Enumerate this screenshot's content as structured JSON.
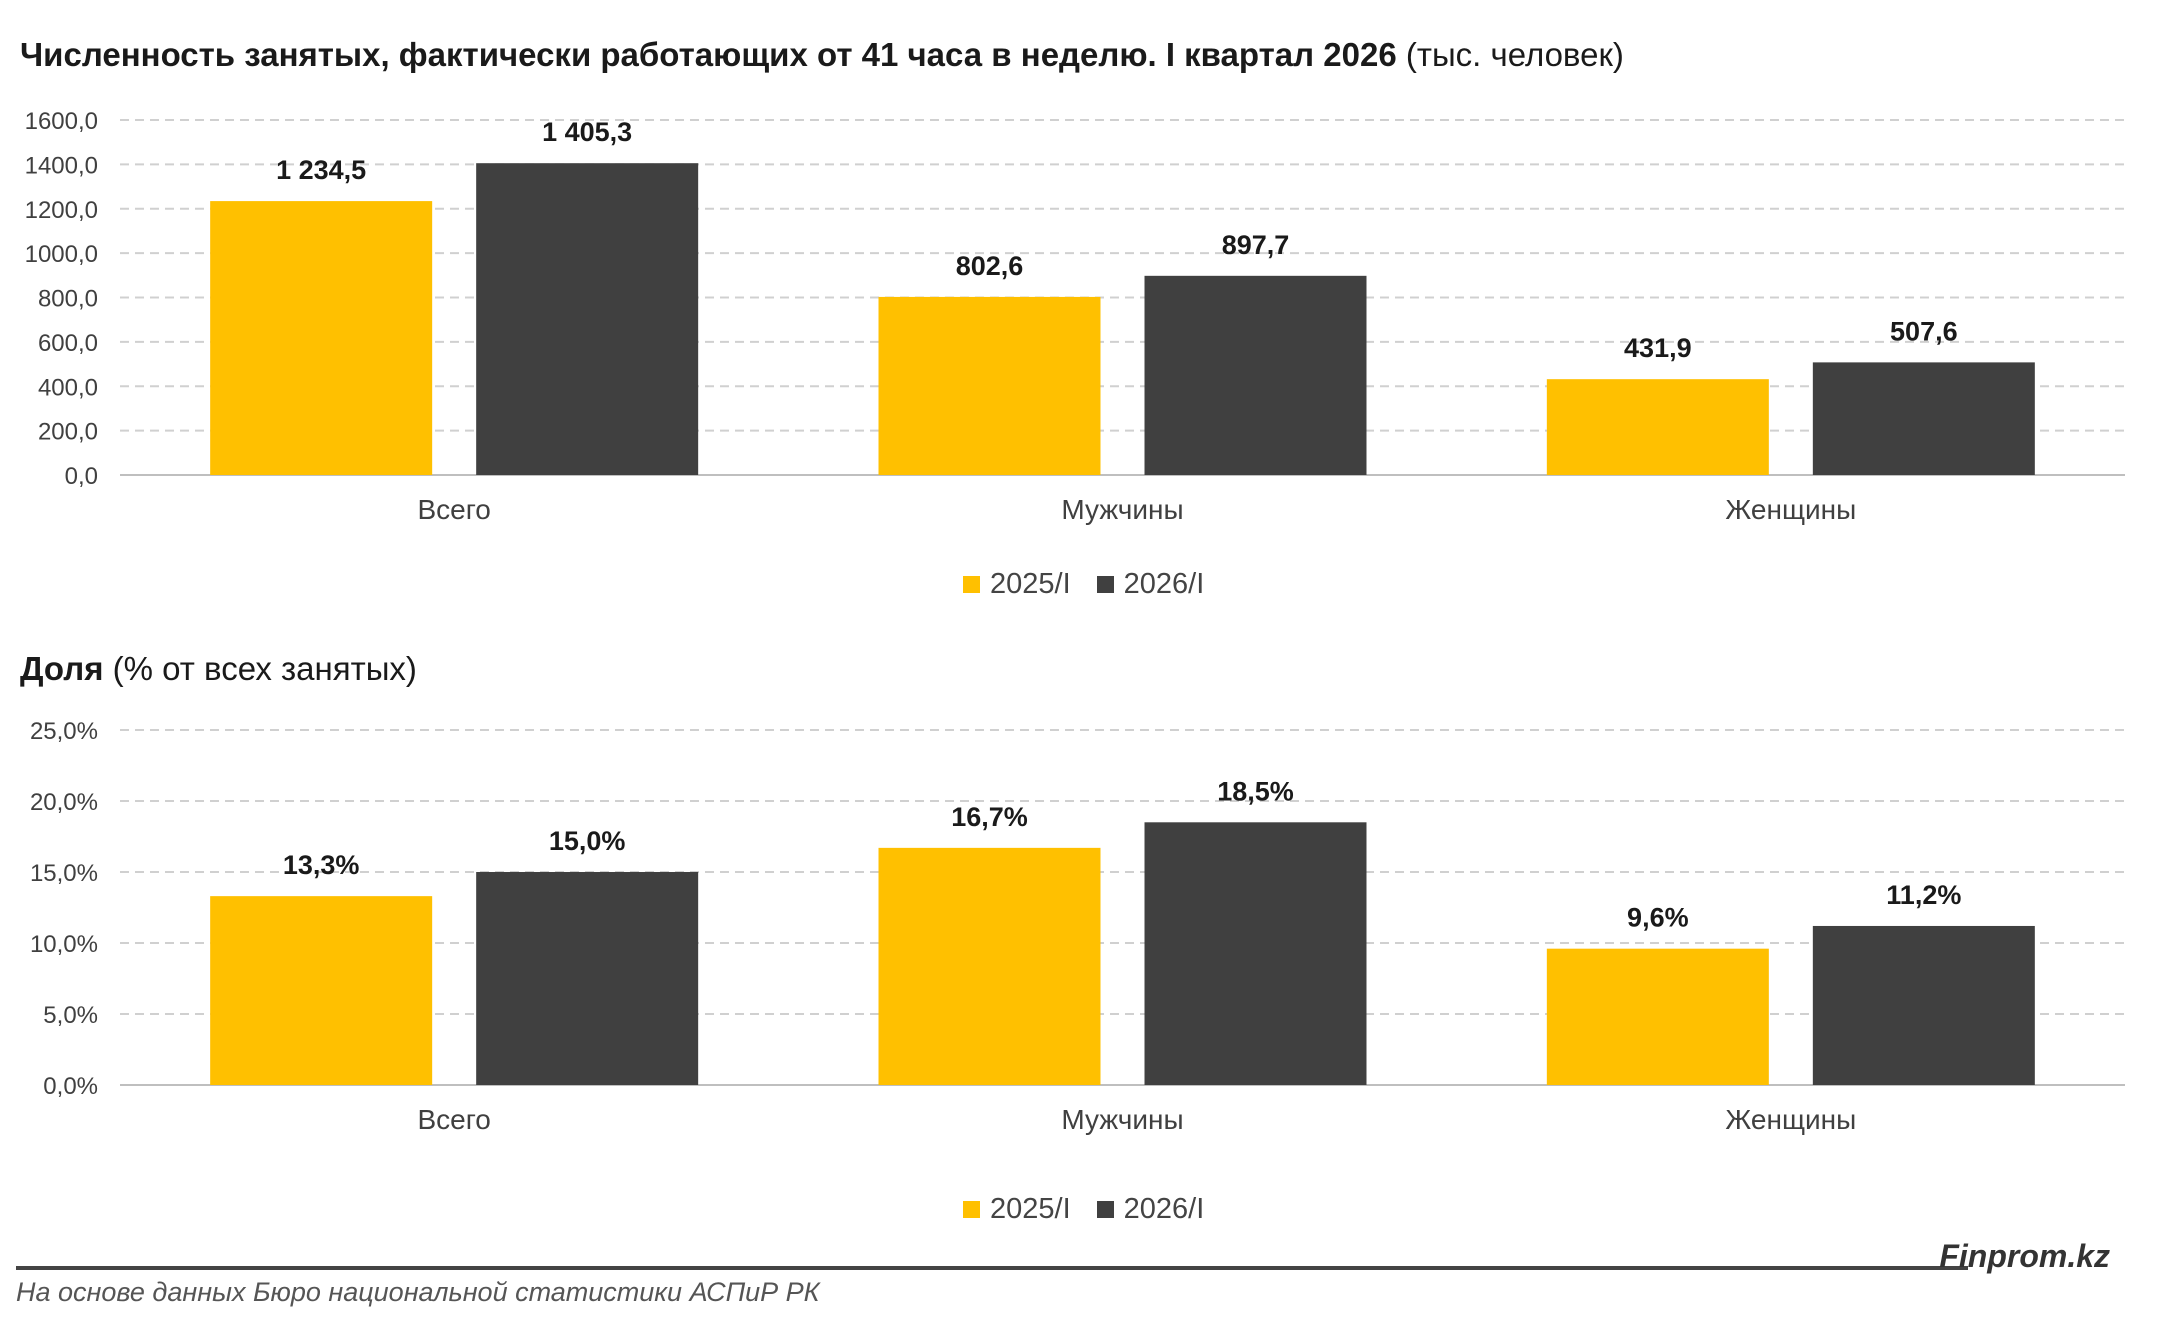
{
  "charts": [
    {
      "title_bold": "Численность занятых, фактически работающих от 41 часа в неделю. I квартал 2026",
      "title_rest": " (тыс. человек)"
    },
    {
      "title_bold": "Доля",
      "title_rest": " (% от всех занятых)"
    }
  ],
  "legend": [
    "2025/I",
    "2026/I"
  ],
  "colors": {
    "series_2025": "#FFC000",
    "series_2026": "#404040",
    "grid": "#d0d0d0",
    "axis": "#bfbfbf"
  },
  "footer": {
    "brand": "Finprom.kz",
    "source": "На основе данных Бюро национальной статистики АСПиР РК"
  },
  "chart_data": [
    {
      "type": "bar",
      "categories": [
        "Всего",
        "Мужчины",
        "Женщины"
      ],
      "series": [
        {
          "name": "2025/I",
          "values": [
            1234.5,
            802.6,
            431.9
          ],
          "labels": [
            "1 234,5",
            "802,6",
            "431,9"
          ]
        },
        {
          "name": "2026/I",
          "values": [
            1405.3,
            897.7,
            507.6
          ],
          "labels": [
            "1 405,3",
            "897,7",
            "507,6"
          ]
        }
      ],
      "ylim": [
        0,
        1600
      ],
      "yticks": [
        0,
        200,
        400,
        600,
        800,
        1000,
        1200,
        1400,
        1600
      ],
      "ytick_labels": [
        "0,0",
        "200,0",
        "400,0",
        "600,0",
        "800,0",
        "1000,0",
        "1200,0",
        "1400,0",
        "1600,0"
      ],
      "grid": true,
      "legend_position": "bottom"
    },
    {
      "type": "bar",
      "categories": [
        "Всего",
        "Мужчины",
        "Женщины"
      ],
      "series": [
        {
          "name": "2025/I",
          "values": [
            13.3,
            16.7,
            9.6
          ],
          "labels": [
            "13,3%",
            "16,7%",
            "9,6%"
          ]
        },
        {
          "name": "2026/I",
          "values": [
            15.0,
            18.5,
            11.2
          ],
          "labels": [
            "15,0%",
            "18,5%",
            "11,2%"
          ]
        }
      ],
      "ylim": [
        0,
        25
      ],
      "yticks": [
        0,
        5,
        10,
        15,
        20,
        25
      ],
      "ytick_labels": [
        "0,0%",
        "5,0%",
        "10,0%",
        "15,0%",
        "20,0%",
        "25,0%"
      ],
      "grid": true,
      "legend_position": "bottom"
    }
  ]
}
